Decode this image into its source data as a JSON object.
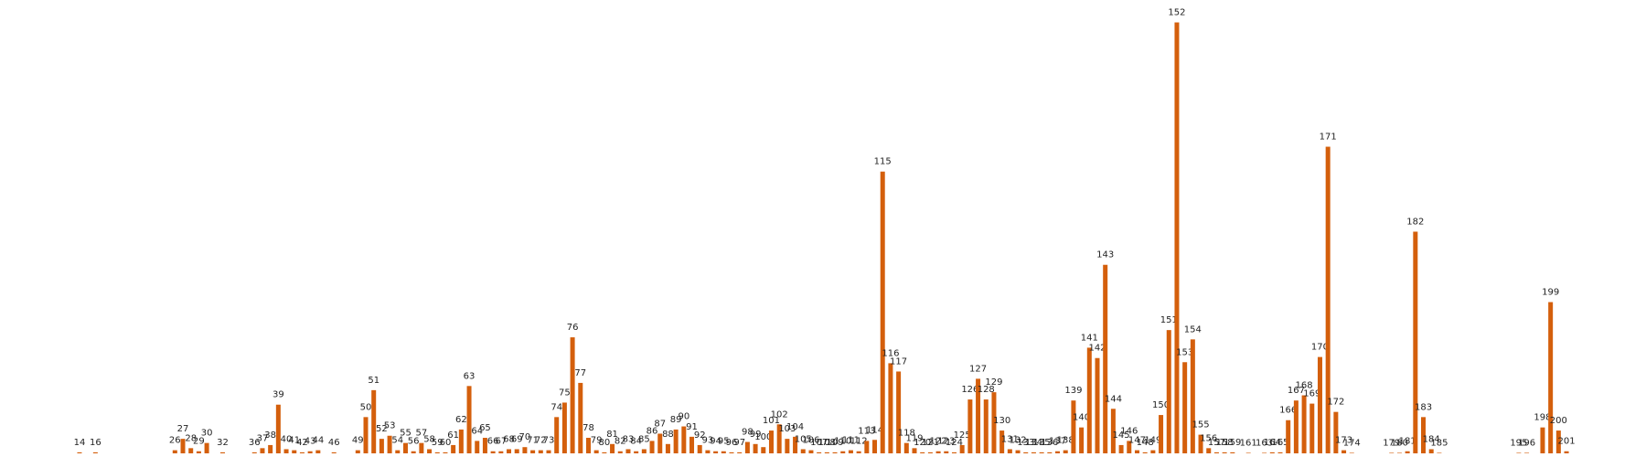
{
  "chart_data": {
    "type": "bar",
    "color": "#d45f0c",
    "x": [
      14,
      16,
      26,
      27,
      28,
      29,
      30,
      32,
      36,
      37,
      38,
      39,
      40,
      41,
      42,
      43,
      44,
      46,
      49,
      50,
      51,
      52,
      53,
      54,
      55,
      56,
      57,
      58,
      59,
      60,
      61,
      62,
      63,
      64,
      65,
      66,
      67,
      68,
      69,
      70,
      71,
      72,
      73,
      74,
      75,
      76,
      77,
      78,
      79,
      80,
      81,
      82,
      83,
      84,
      85,
      86,
      87,
      88,
      89,
      90,
      91,
      92,
      93,
      94,
      95,
      96,
      97,
      98,
      99,
      100,
      101,
      102,
      103,
      104,
      105,
      106,
      107,
      108,
      109,
      110,
      111,
      112,
      113,
      114,
      115,
      116,
      117,
      118,
      119,
      120,
      121,
      122,
      123,
      124,
      125,
      126,
      127,
      128,
      129,
      130,
      131,
      132,
      133,
      134,
      135,
      136,
      137,
      138,
      139,
      140,
      141,
      142,
      143,
      144,
      145,
      146,
      147,
      148,
      149,
      150,
      151,
      152,
      153,
      154,
      155,
      156,
      157,
      158,
      159,
      161,
      163,
      164,
      165,
      166,
      167,
      168,
      169,
      170,
      171,
      172,
      173,
      174,
      179,
      180,
      181,
      182,
      183,
      184,
      185,
      195,
      196,
      198,
      199,
      200,
      201
    ],
    "values": [
      1,
      1,
      3,
      14,
      5,
      2,
      10,
      1,
      1,
      5,
      8,
      47,
      4,
      3,
      1,
      2,
      3,
      1,
      3,
      35,
      61,
      14,
      17,
      3,
      10,
      2,
      10,
      4,
      1,
      1,
      8,
      23,
      65,
      12,
      15,
      2,
      2,
      4,
      4,
      6,
      3,
      3,
      3,
      35,
      49,
      112,
      68,
      15,
      3,
      1,
      9,
      2,
      4,
      2,
      4,
      12,
      19,
      9,
      23,
      26,
      16,
      8,
      3,
      2,
      2,
      1,
      1,
      11,
      9,
      6,
      22,
      28,
      14,
      16,
      4,
      3,
      1,
      1,
      1,
      2,
      3,
      2,
      12,
      13,
      272,
      87,
      79,
      10,
      5,
      1,
      1,
      2,
      2,
      1,
      8,
      52,
      72,
      52,
      59,
      22,
      4,
      3,
      1,
      1,
      1,
      1,
      2,
      3,
      51,
      25,
      102,
      92,
      182,
      43,
      8,
      12,
      3,
      1,
      3,
      37,
      119,
      416,
      88,
      110,
      18,
      5,
      1,
      1,
      1,
      0.5,
      0.5,
      1,
      1,
      32,
      51,
      56,
      48,
      93,
      296,
      40,
      3,
      0.5,
      0.5,
      0.5,
      2,
      214,
      35,
      4,
      0.5,
      0.5,
      0.5,
      25,
      146,
      22,
      2
    ],
    "xlim": [
      4,
      211
    ],
    "ylim": [
      0,
      420
    ]
  }
}
